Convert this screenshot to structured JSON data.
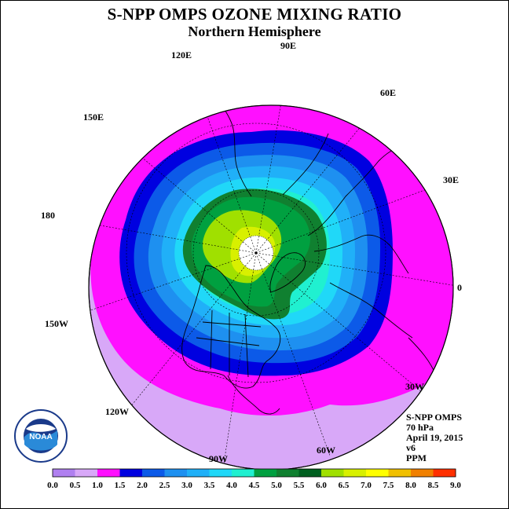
{
  "header": {
    "title": "S-NPP OMPS OZONE MIXING RATIO",
    "subtitle": "Northern Hemisphere"
  },
  "map": {
    "projection": "north polar stereographic",
    "longitude_labels": [
      "90E",
      "60E",
      "30E",
      "0",
      "30W",
      "60W",
      "90W",
      "120W",
      "150W",
      "180",
      "150E",
      "120E"
    ],
    "contour_levels_ppm": [
      1.5,
      2.0,
      2.5,
      3.0,
      3.5,
      4.0,
      4.5,
      5.0,
      5.5,
      6.0
    ],
    "max_value_region": "Arctic / Canadian sector",
    "min_value_region": "tropics (outer ring)"
  },
  "info": {
    "instrument": "S-NPP OMPS",
    "level": "70 hPa",
    "date": "April 19, 2015",
    "version": "v6",
    "units": "PPM"
  },
  "colorbar": {
    "ticks": [
      "0.0",
      "0.5",
      "1.0",
      "1.5",
      "2.0",
      "2.5",
      "3.0",
      "3.5",
      "4.0",
      "4.5",
      "5.0",
      "5.5",
      "6.0",
      "6.5",
      "7.0",
      "7.5",
      "8.0",
      "8.5",
      "9.0"
    ],
    "colors": [
      "#b080f0",
      "#d8a8f8",
      "#ff10ff",
      "#0000e0",
      "#0c5ae8",
      "#1e90f0",
      "#20b0f8",
      "#20d8f8",
      "#20f0d0",
      "#00a040",
      "#108030",
      "#006020",
      "#a0e000",
      "#d8f000",
      "#ffff00",
      "#f0c000",
      "#f08000",
      "#ff3000",
      "#ff0000",
      "#805030"
    ]
  },
  "logo": {
    "text": "NOAA",
    "ring_text": "NATIONAL OCEANIC AND ATMOSPHERIC ADMINISTRATION · U.S. DEPARTMENT OF COMMERCE"
  }
}
